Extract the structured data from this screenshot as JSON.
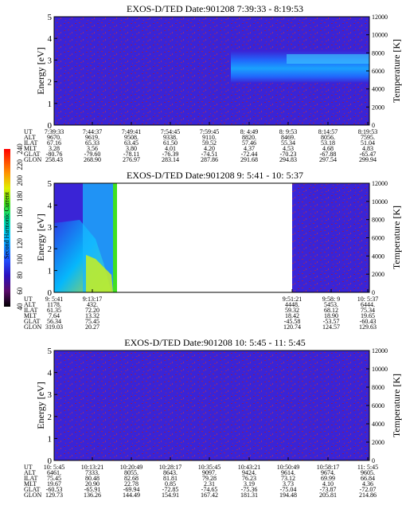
{
  "chart_data": [
    {
      "type": "heatmap",
      "title": "EXOS-D/TED   Date:901208   7:39:33 - 8:19:53",
      "ylabel": "Energy [eV]",
      "y2label": "Temperature [K]",
      "ylim": [
        0,
        5
      ],
      "yticks": [
        "0",
        "1",
        "2",
        "3",
        "4",
        "5"
      ],
      "y2lim": [
        0,
        12000
      ],
      "y2ticks": [
        "0",
        "2000",
        "4000",
        "6000",
        "8000",
        "10000",
        "12000"
      ],
      "table": {
        "row_labels": [
          "UT",
          "ALT",
          "ILAT",
          "MLT",
          "GLAT",
          "GLON"
        ],
        "columns": [
          [
            "7:39:33",
            "9670.",
            "67.16",
            "3.28",
            "-80.76",
            "258.43"
          ],
          [
            "7:44:37",
            "9619.",
            "65.33",
            "3.56",
            "-79.60",
            "268.90"
          ],
          [
            "7:49:41",
            "9508.",
            "63.45",
            "3.80",
            "-78.11",
            "276.97"
          ],
          [
            "7:54:45",
            "9338.",
            "61.50",
            "4.01",
            "-76.39",
            "283.14"
          ],
          [
            "7:59:45",
            "9110.",
            "59.52",
            "4.20",
            "-74.51",
            "287.86"
          ],
          [
            "8: 4:49",
            "8820.",
            "57.46",
            "4.37",
            "-72.44",
            "291.68"
          ],
          [
            "8: 9:53",
            "8469.",
            "55.34",
            "4.53",
            "-70.23",
            "294.83"
          ],
          [
            "8:14:57",
            "8056.",
            "53.18",
            "4.68",
            "-67.88",
            "297.54"
          ],
          [
            "8:19:53",
            "7595.",
            "51.04",
            "4.83",
            "-65.47",
            "299.94"
          ]
        ]
      }
    },
    {
      "type": "heatmap",
      "title": "EXOS-D/TED   Date:901208   9: 5:41 - 10: 5:37",
      "ylabel": "Energy [eV]",
      "y2label": "Temperature [K]",
      "ylim": [
        0,
        5
      ],
      "yticks": [
        "0",
        "1",
        "2",
        "3",
        "4",
        "5"
      ],
      "y2lim": [
        0,
        12000
      ],
      "y2ticks": [
        "0",
        "2000",
        "4000",
        "6000",
        "8000",
        "10000",
        "12000"
      ],
      "table": {
        "row_labels": [
          "UT",
          "ALT",
          "ILAT",
          "MLT",
          "GLAT",
          "GLON"
        ],
        "columns": [
          [
            "9: 5:41",
            "1178.",
            "61.35",
            "7.64",
            "56.34",
            "319.03"
          ],
          [
            "9:13:17",
            "432.",
            "72.20",
            "13.32",
            "75.45",
            "20.27"
          ],
          [
            "9:51:21",
            "4448.",
            "59.32",
            "18.42",
            "-45.58",
            "120.74"
          ],
          [
            "9:58: 9",
            "5453.",
            "68.12",
            "18.90",
            "-53.57",
            "124.57"
          ],
          [
            "10: 5:37",
            "6444.",
            "75.34",
            "19.65",
            "-60.43",
            "129.63"
          ]
        ]
      }
    },
    {
      "type": "heatmap",
      "title": "EXOS-D/TED   Date:901208   10: 5:45 - 11: 5:45",
      "ylabel": "Energy [eV]",
      "y2label": "Temperature [K]",
      "ylim": [
        0,
        5
      ],
      "yticks": [
        "0",
        "1",
        "2",
        "3",
        "4",
        "5"
      ],
      "y2lim": [
        0,
        12000
      ],
      "y2ticks": [
        "0",
        "2000",
        "4000",
        "6000",
        "8000",
        "10000",
        "12000"
      ],
      "table": {
        "row_labels": [
          "UT",
          "ALT",
          "ILAT",
          "MLT",
          "GLAT",
          "GLON"
        ],
        "columns": [
          [
            "10: 5:45",
            "6461.",
            "75.45",
            "19.67",
            "-60.53",
            "129.73"
          ],
          [
            "10:13:21",
            "7333.",
            "80.48",
            "20.90",
            "-65.91",
            "136.26"
          ],
          [
            "10:20:49",
            "8055.",
            "82.68",
            "22.78",
            "-69.94",
            "144.49"
          ],
          [
            "10:28:17",
            "8643.",
            "81.81",
            "0.85",
            "-72.85",
            "154.91"
          ],
          [
            "10:35:45",
            "9097.",
            "79.28",
            "2.31",
            "-74.65",
            "167.42"
          ],
          [
            "10:43:21",
            "9424.",
            "76.23",
            "3.19",
            "-75.36",
            "181.31"
          ],
          [
            "10:50:49",
            "9614.",
            "73.12",
            "3.73",
            "-75.04",
            "194.48"
          ],
          [
            "10:58:17",
            "9674.",
            "69.99",
            "4.10",
            "-73.87",
            "205.81"
          ],
          [
            "11: 5:45",
            "9605.",
            "66.84",
            "4.36",
            "-72.07",
            "214.86"
          ]
        ]
      }
    }
  ],
  "colorbar": {
    "label": "Second Harmonic Current",
    "ticks": [
      "40",
      "60",
      "80",
      "100",
      "120",
      "140",
      "160",
      "180",
      "200",
      "220",
      "240"
    ]
  }
}
